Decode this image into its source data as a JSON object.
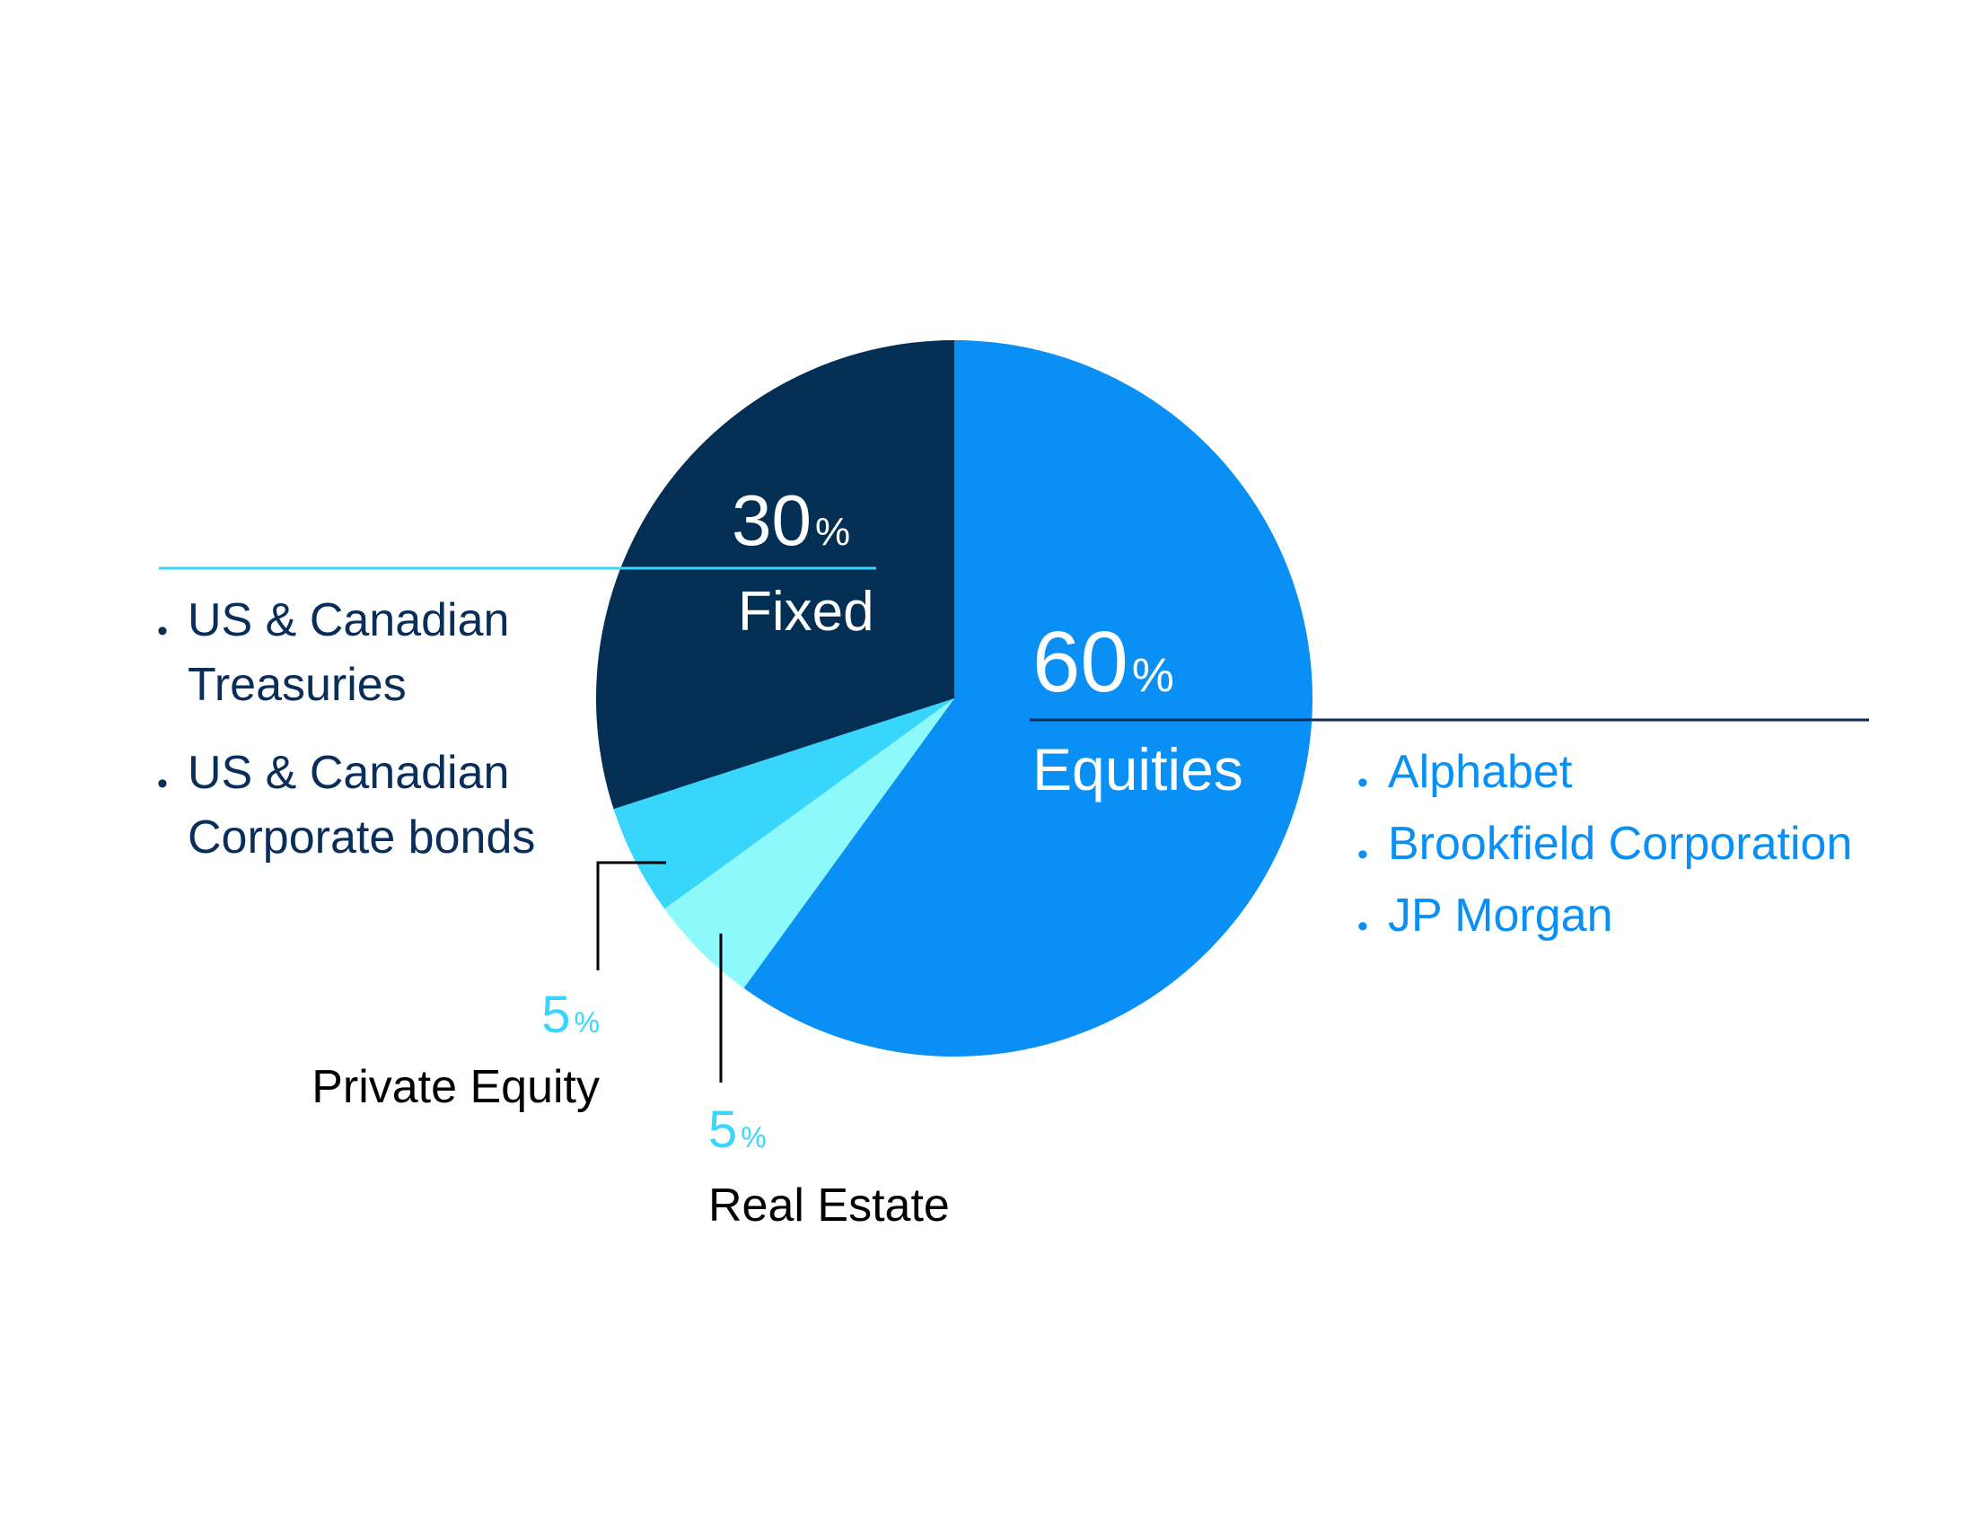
{
  "chart_data": {
    "type": "pie",
    "categories": [
      "Equities",
      "Real Estate",
      "Private Equity",
      "Fixed"
    ],
    "values": [
      60,
      5,
      5,
      30
    ],
    "value_labels": [
      "60%",
      "5%",
      "5%",
      "30%"
    ],
    "colors": [
      "#0a8ff5",
      "#8ef9fb",
      "#38d6fb",
      "#032f55"
    ],
    "items": [
      [
        "Alphabet",
        "Brookfield Corporation",
        "JP Morgan"
      ],
      [],
      [],
      [
        "US & Canadian Treasuries",
        "US & Canadian Corporate bonds"
      ]
    ]
  }
}
